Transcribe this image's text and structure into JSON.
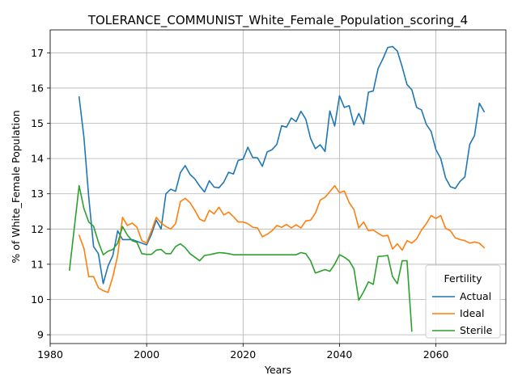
{
  "chart_data": {
    "type": "line",
    "title": "TOLERANCE_COMMUNIST_White_Female_Population_scoring_4",
    "xlabel": "Years",
    "ylabel": "% of White_Female Population",
    "xlim": [
      1980,
      2074.5
    ],
    "ylim": [
      8.75,
      17.65
    ],
    "xticks": [
      1980,
      2000,
      2020,
      2040,
      2060
    ],
    "yticks": [
      9,
      10,
      11,
      12,
      13,
      14,
      15,
      16,
      17
    ],
    "grid": true,
    "legend": {
      "title": "Fertility",
      "placement": "lower-right"
    },
    "series": [
      {
        "name": "Actual",
        "color": "#1f77b4",
        "x": [
          1986,
          1987,
          1988,
          1989,
          1990,
          1991,
          1992,
          1993,
          1994,
          1995,
          1996,
          1997,
          1998,
          1999,
          2000,
          2001,
          2002,
          2003,
          2004,
          2005,
          2006,
          2007,
          2008,
          2009,
          2010,
          2011,
          2012,
          2013,
          2014,
          2015,
          2016,
          2017,
          2018,
          2019,
          2020,
          2021,
          2022,
          2023,
          2024,
          2025,
          2026,
          2027,
          2028,
          2029,
          2030,
          2031,
          2032,
          2033,
          2034,
          2035,
          2036,
          2037,
          2038,
          2039,
          2040,
          2041,
          2042,
          2043,
          2044,
          2045,
          2046,
          2047,
          2048,
          2049,
          2050,
          2051,
          2052,
          2053,
          2054,
          2055,
          2056,
          2057,
          2058,
          2059,
          2060,
          2061,
          2062,
          2063,
          2064,
          2065,
          2066,
          2067,
          2068,
          2069,
          2070
        ],
        "values": [
          15.75,
          14.6,
          12.9,
          11.5,
          11.3,
          10.45,
          10.95,
          11.25,
          11.95,
          11.7,
          11.7,
          11.7,
          11.65,
          11.6,
          11.55,
          11.85,
          12.25,
          12.0,
          13.0,
          13.13,
          13.07,
          13.6,
          13.8,
          13.55,
          13.42,
          13.22,
          13.05,
          13.37,
          13.19,
          13.17,
          13.33,
          13.61,
          13.56,
          13.95,
          13.98,
          14.32,
          14.03,
          14.02,
          13.78,
          14.19,
          14.25,
          14.4,
          14.93,
          14.89,
          15.15,
          15.05,
          15.34,
          15.12,
          14.57,
          14.28,
          14.39,
          14.2,
          15.35,
          14.92,
          15.78,
          15.45,
          15.5,
          14.95,
          15.28,
          14.98,
          15.88,
          15.92,
          16.55,
          16.83,
          17.15,
          17.18,
          17.05,
          16.6,
          16.1,
          15.95,
          15.45,
          15.38,
          14.97,
          14.77,
          14.25,
          14.0,
          13.45,
          13.2,
          13.15,
          13.35,
          13.48,
          14.4,
          14.65,
          15.57,
          15.33
        ]
      },
      {
        "name": "Ideal",
        "color": "#ff7f0e",
        "x": [
          1986,
          1987,
          1988,
          1989,
          1990,
          1991,
          1992,
          1993,
          1994,
          1995,
          1996,
          1997,
          1998,
          1999,
          2000,
          2001,
          2002,
          2003,
          2004,
          2005,
          2006,
          2007,
          2008,
          2009,
          2010,
          2011,
          2012,
          2013,
          2014,
          2015,
          2016,
          2017,
          2018,
          2019,
          2020,
          2021,
          2022,
          2023,
          2024,
          2025,
          2026,
          2027,
          2028,
          2029,
          2030,
          2031,
          2032,
          2033,
          2034,
          2035,
          2036,
          2037,
          2038,
          2039,
          2040,
          2041,
          2042,
          2043,
          2044,
          2045,
          2046,
          2047,
          2048,
          2049,
          2050,
          2051,
          2052,
          2053,
          2054,
          2055,
          2056,
          2057,
          2058,
          2059,
          2060,
          2061,
          2062,
          2063,
          2064,
          2065,
          2066,
          2067,
          2068,
          2069,
          2070
        ],
        "values": [
          11.82,
          11.45,
          10.65,
          10.65,
          10.33,
          10.25,
          10.2,
          10.65,
          11.25,
          12.33,
          12.1,
          12.17,
          12.05,
          11.67,
          11.6,
          11.95,
          12.33,
          12.17,
          12.07,
          12.0,
          12.15,
          12.78,
          12.87,
          12.75,
          12.53,
          12.28,
          12.22,
          12.53,
          12.43,
          12.62,
          12.4,
          12.48,
          12.35,
          12.2,
          12.2,
          12.15,
          12.05,
          12.03,
          11.78,
          11.85,
          11.95,
          12.1,
          12.05,
          12.13,
          12.03,
          12.12,
          12.03,
          12.23,
          12.25,
          12.45,
          12.82,
          12.9,
          13.06,
          13.23,
          13.03,
          13.08,
          12.75,
          12.55,
          12.03,
          12.2,
          11.95,
          11.97,
          11.88,
          11.8,
          11.82,
          11.43,
          11.58,
          11.4,
          11.67,
          11.6,
          11.72,
          11.97,
          12.15,
          12.38,
          12.3,
          12.38,
          12.02,
          11.95,
          11.75,
          11.7,
          11.67,
          11.6,
          11.63,
          11.6,
          11.47
        ]
      },
      {
        "name": "Sterile",
        "color": "#2ca02c",
        "x": [
          1984,
          1986,
          1987,
          1988,
          1989,
          1990,
          1991,
          1992,
          1993,
          1994,
          1995,
          1996,
          1997,
          1998,
          1999,
          2000,
          2001,
          2002,
          2003,
          2004,
          2005,
          2006,
          2007,
          2008,
          2009,
          2010,
          2011,
          2012,
          2013,
          2014,
          2015,
          2016,
          2017,
          2018,
          2019,
          2020,
          2021,
          2022,
          2023,
          2024,
          2025,
          2026,
          2027,
          2028,
          2029,
          2030,
          2031,
          2032,
          2033,
          2034,
          2035,
          2036,
          2037,
          2038,
          2039,
          2040,
          2041,
          2042,
          2043,
          2044,
          2045,
          2046,
          2047,
          2048,
          2049,
          2050,
          2051,
          2052,
          2053,
          2054,
          2055
        ],
        "values": [
          10.83,
          13.23,
          12.58,
          12.2,
          12.08,
          11.63,
          11.27,
          11.37,
          11.42,
          11.6,
          12.07,
          11.83,
          11.67,
          11.62,
          11.3,
          11.28,
          11.28,
          11.4,
          11.42,
          11.3,
          11.3,
          11.5,
          11.58,
          11.47,
          11.3,
          11.2,
          11.1,
          11.25,
          11.27,
          11.3,
          11.33,
          11.32,
          11.3,
          11.27,
          11.27,
          11.27,
          11.27,
          11.27,
          11.27,
          11.27,
          11.27,
          11.27,
          11.27,
          11.27,
          11.27,
          11.27,
          11.27,
          11.33,
          11.3,
          11.1,
          10.75,
          10.8,
          10.85,
          10.8,
          11.0,
          11.27,
          11.2,
          11.1,
          10.87,
          9.98,
          10.22,
          10.5,
          10.43,
          11.22,
          11.23,
          11.25,
          10.65,
          10.45,
          11.1,
          11.1,
          9.1
        ]
      }
    ]
  }
}
